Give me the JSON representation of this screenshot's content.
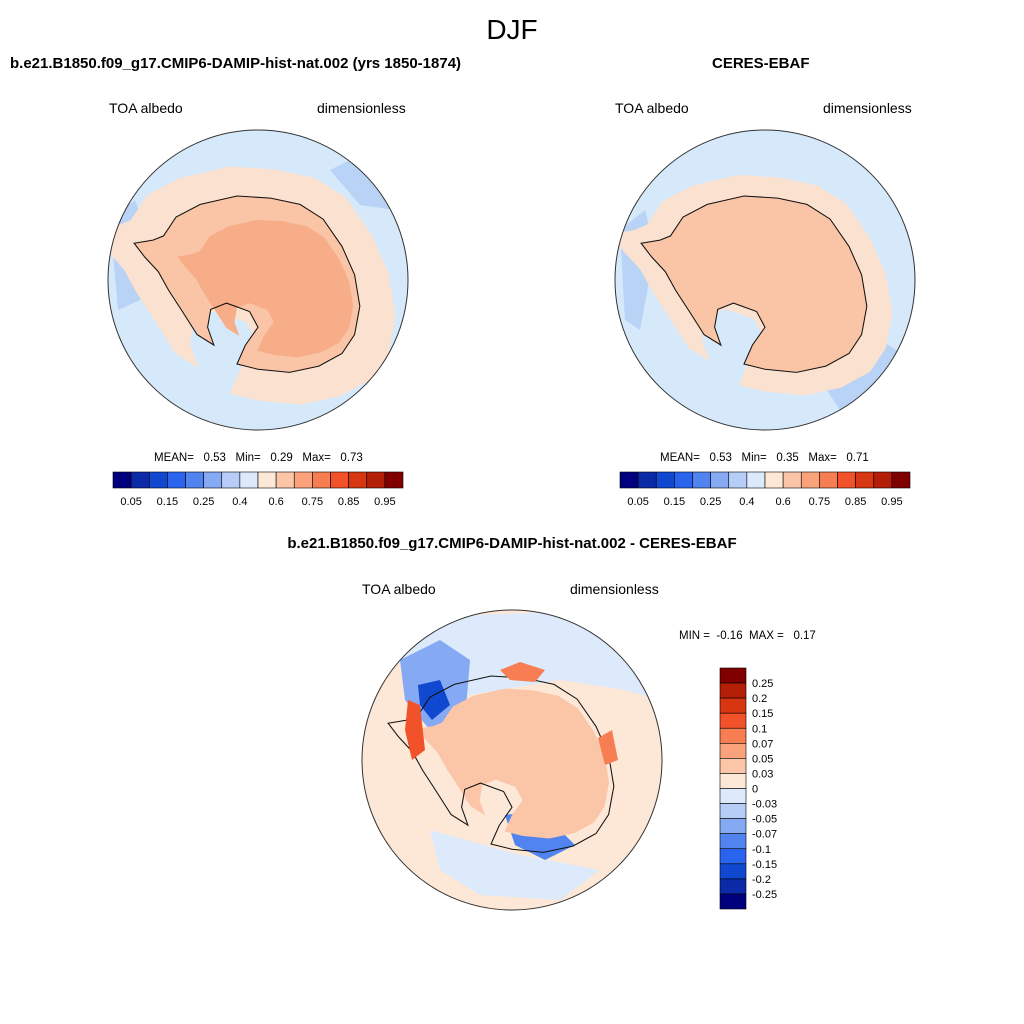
{
  "figure": {
    "season": "DJF",
    "colors": {
      "coast": "#111111",
      "outline": "#333333",
      "ocean": "#d6e9fb",
      "seaice": "#fbe1cf",
      "ice_outer": "#f9c5a6",
      "ice_inner": "#f6ad88",
      "blue_patch": "#b9d3f6"
    }
  },
  "panels": {
    "model": {
      "title": "b.e21.B1850.f09_g17.CMIP6-DAMIP-hist-nat.002 (yrs 1850-1874)",
      "left_label": "TOA albedo",
      "right_label": "dimensionless",
      "stats": {
        "mean_label": "MEAN=",
        "mean": "0.53",
        "min_label": "Min=",
        "min": "0.29",
        "max_label": "Max=",
        "max": "0.73"
      }
    },
    "obs": {
      "title": "CERES-EBAF",
      "left_label": "TOA albedo",
      "right_label": "dimensionless",
      "stats": {
        "mean_label": "MEAN=",
        "mean": "0.53",
        "min_label": "Min=",
        "min": "0.35",
        "max_label": "Max=",
        "max": "0.71"
      }
    },
    "diff": {
      "title": "b.e21.B1850.f09_g17.CMIP6-DAMIP-hist-nat.002 - CERES-EBAF",
      "left_label": "TOA albedo",
      "right_label": "dimensionless",
      "stats": {
        "min_label": "MIN =",
        "min": "-0.16",
        "max_label": "MAX =",
        "max": "0.17"
      }
    }
  },
  "colorbars": {
    "abs": {
      "colors": [
        "#00007f",
        "#0a2aa8",
        "#1048d0",
        "#2a64ee",
        "#5184f0",
        "#86a9f3",
        "#b5cdf7",
        "#dceafb",
        "#fde7d6",
        "#fbc6a8",
        "#f9a27c",
        "#f77e52",
        "#f2522a",
        "#d83511",
        "#b41e07",
        "#800000"
      ],
      "tick_labels": [
        "0.05",
        "0.15",
        "0.25",
        "0.4",
        "0.6",
        "0.75",
        "0.85",
        "0.95"
      ]
    },
    "diff": {
      "colors": [
        "#800000",
        "#b41e07",
        "#d83511",
        "#f2522a",
        "#f77e52",
        "#f9a27c",
        "#fbc6a8",
        "#fde7d6",
        "#dceafb",
        "#b5cdf7",
        "#86a9f3",
        "#5184f0",
        "#2a64ee",
        "#1048d0",
        "#0a2aa8",
        "#00007f"
      ],
      "tick_labels": [
        "0.25",
        "0.2",
        "0.15",
        "0.1",
        "0.07",
        "0.05",
        "0.03",
        "0",
        "-0.03",
        "-0.05",
        "-0.07",
        "-0.1",
        "-0.15",
        "-0.2",
        "-0.25"
      ]
    }
  }
}
